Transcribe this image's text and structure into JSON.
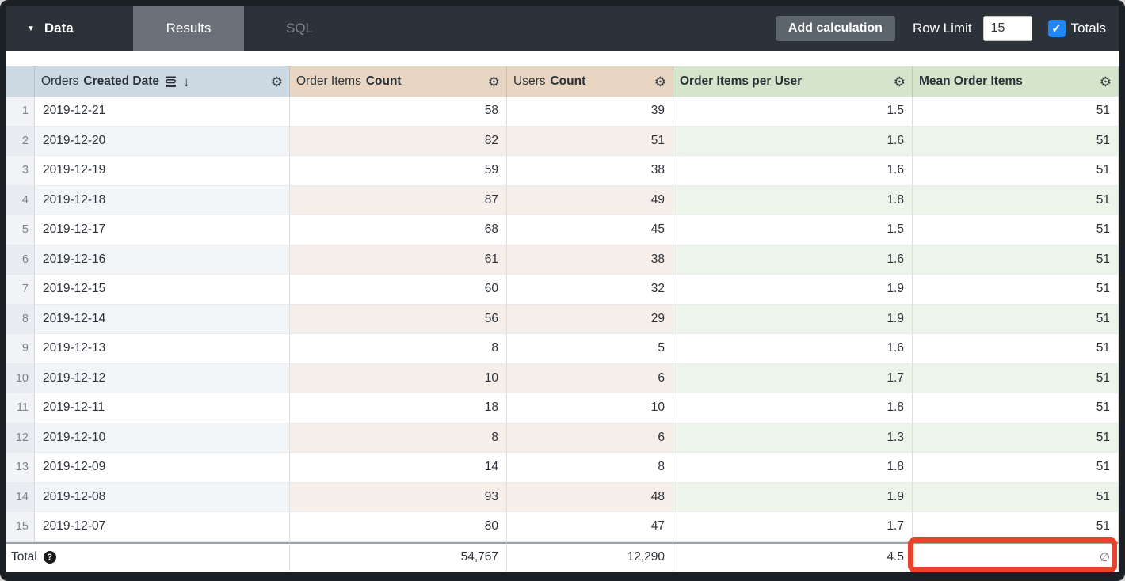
{
  "topbar": {
    "data_menu_label": "Data",
    "tabs": [
      {
        "label": "Results",
        "active": true
      },
      {
        "label": "SQL",
        "active": false
      }
    ],
    "add_calculation_label": "Add calculation",
    "row_limit_label": "Row Limit",
    "row_limit_value": "15",
    "totals_label": "Totals",
    "totals_checked": true
  },
  "table": {
    "columns": [
      {
        "id": "orders_created_date",
        "prefix": "Orders ",
        "bold": "Created Date",
        "type": "dimension",
        "sorted_desc": true
      },
      {
        "id": "order_items_count",
        "prefix": "Order Items ",
        "bold": "Count",
        "type": "measure"
      },
      {
        "id": "users_count",
        "prefix": "Users ",
        "bold": "Count",
        "type": "measure"
      },
      {
        "id": "order_items_per_user",
        "prefix": "",
        "bold": "Order Items per User",
        "type": "table_calculation"
      },
      {
        "id": "mean_order_items",
        "prefix": "",
        "bold": "Mean Order Items",
        "type": "table_calculation"
      }
    ],
    "rows": [
      {
        "num": "1",
        "date": "2019-12-21",
        "order_items_count": "58",
        "users_count": "39",
        "order_items_per_user": "1.5",
        "mean_order_items": "51"
      },
      {
        "num": "2",
        "date": "2019-12-20",
        "order_items_count": "82",
        "users_count": "51",
        "order_items_per_user": "1.6",
        "mean_order_items": "51"
      },
      {
        "num": "3",
        "date": "2019-12-19",
        "order_items_count": "59",
        "users_count": "38",
        "order_items_per_user": "1.6",
        "mean_order_items": "51"
      },
      {
        "num": "4",
        "date": "2019-12-18",
        "order_items_count": "87",
        "users_count": "49",
        "order_items_per_user": "1.8",
        "mean_order_items": "51"
      },
      {
        "num": "5",
        "date": "2019-12-17",
        "order_items_count": "68",
        "users_count": "45",
        "order_items_per_user": "1.5",
        "mean_order_items": "51"
      },
      {
        "num": "6",
        "date": "2019-12-16",
        "order_items_count": "61",
        "users_count": "38",
        "order_items_per_user": "1.6",
        "mean_order_items": "51"
      },
      {
        "num": "7",
        "date": "2019-12-15",
        "order_items_count": "60",
        "users_count": "32",
        "order_items_per_user": "1.9",
        "mean_order_items": "51"
      },
      {
        "num": "8",
        "date": "2019-12-14",
        "order_items_count": "56",
        "users_count": "29",
        "order_items_per_user": "1.9",
        "mean_order_items": "51"
      },
      {
        "num": "9",
        "date": "2019-12-13",
        "order_items_count": "8",
        "users_count": "5",
        "order_items_per_user": "1.6",
        "mean_order_items": "51"
      },
      {
        "num": "10",
        "date": "2019-12-12",
        "order_items_count": "10",
        "users_count": "6",
        "order_items_per_user": "1.7",
        "mean_order_items": "51"
      },
      {
        "num": "11",
        "date": "2019-12-11",
        "order_items_count": "18",
        "users_count": "10",
        "order_items_per_user": "1.8",
        "mean_order_items": "51"
      },
      {
        "num": "12",
        "date": "2019-12-10",
        "order_items_count": "8",
        "users_count": "6",
        "order_items_per_user": "1.3",
        "mean_order_items": "51"
      },
      {
        "num": "13",
        "date": "2019-12-09",
        "order_items_count": "14",
        "users_count": "8",
        "order_items_per_user": "1.8",
        "mean_order_items": "51"
      },
      {
        "num": "14",
        "date": "2019-12-08",
        "order_items_count": "93",
        "users_count": "48",
        "order_items_per_user": "1.9",
        "mean_order_items": "51"
      },
      {
        "num": "15",
        "date": "2019-12-07",
        "order_items_count": "80",
        "users_count": "47",
        "order_items_per_user": "1.7",
        "mean_order_items": "51"
      }
    ],
    "total": {
      "label": "Total",
      "order_items_count": "54,767",
      "users_count": "12,290",
      "order_items_per_user": "4.5",
      "mean_order_items": "∅"
    }
  },
  "annotation": {
    "highlight_color": "#e8432f",
    "highlighted_cell": "total mean_order_items"
  },
  "colors": {
    "topbar_bg": "#2b323a",
    "active_tab_bg": "#697077",
    "dimension_header_bg": "#ccd9e3",
    "measure_header_bg": "#e9d6c2",
    "calc_header_bg": "#d4e5cc",
    "checkbox_blue": "#1f87f6"
  }
}
